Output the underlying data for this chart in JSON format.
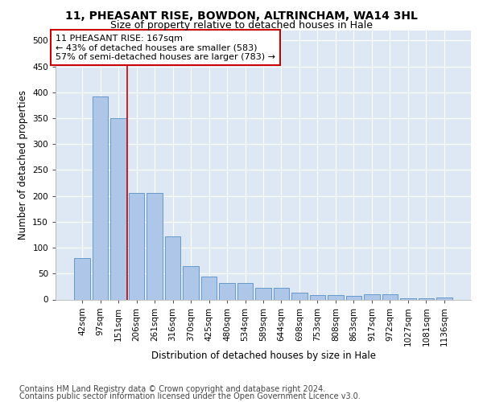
{
  "title": "11, PHEASANT RISE, BOWDON, ALTRINCHAM, WA14 3HL",
  "subtitle": "Size of property relative to detached houses in Hale",
  "xlabel": "Distribution of detached houses by size in Hale",
  "ylabel": "Number of detached properties",
  "categories": [
    "42sqm",
    "97sqm",
    "151sqm",
    "206sqm",
    "261sqm",
    "316sqm",
    "370sqm",
    "425sqm",
    "480sqm",
    "534sqm",
    "589sqm",
    "644sqm",
    "698sqm",
    "753sqm",
    "808sqm",
    "863sqm",
    "917sqm",
    "972sqm",
    "1027sqm",
    "1081sqm",
    "1136sqm"
  ],
  "values": [
    80,
    392,
    350,
    205,
    205,
    122,
    64,
    44,
    32,
    32,
    22,
    23,
    13,
    9,
    9,
    7,
    10,
    10,
    3,
    3,
    4
  ],
  "bar_color": "#aec6e8",
  "bar_edge_color": "#6699cc",
  "vline_color": "#cc0000",
  "annotation_text": "11 PHEASANT RISE: 167sqm\n← 43% of detached houses are smaller (583)\n57% of semi-detached houses are larger (783) →",
  "annotation_box_color": "#ffffff",
  "annotation_box_edge": "#cc0000",
  "ylim": [
    0,
    520
  ],
  "yticks": [
    0,
    50,
    100,
    150,
    200,
    250,
    300,
    350,
    400,
    450,
    500
  ],
  "bg_color": "#dde8f4",
  "grid_color": "#ffffff",
  "footer_line1": "Contains HM Land Registry data © Crown copyright and database right 2024.",
  "footer_line2": "Contains public sector information licensed under the Open Government Licence v3.0.",
  "title_fontsize": 10,
  "subtitle_fontsize": 9,
  "axis_label_fontsize": 8.5,
  "tick_fontsize": 7.5,
  "annotation_fontsize": 8,
  "footer_fontsize": 7
}
